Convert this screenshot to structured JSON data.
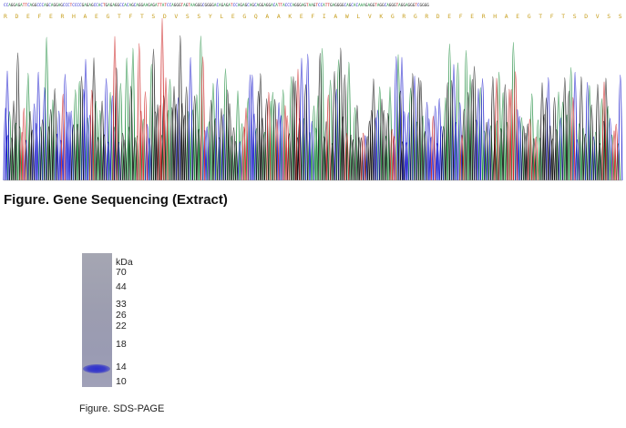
{
  "sequencing": {
    "caption": "Figure. Gene Sequencing (Extract)",
    "dna_sequence": "CCAGGAGATTCAGGCCCAGCAGGAGCCCTCCCCGAGAGCCACTGAGAGGCCACAGCAGGAAGAGATTATCCAGGGTAGTAAGGGCGGGGACAGAGATCCAGAGCAGCAGGAGGACATTACCCAGGGAGTAAGTCCATTGAGGGGCAGCACAAAGAGGTAGGCAGGGTAGGAGGGTCGGGG",
    "protein_sequence": "R D E F E R H A E G T F T S D V S S Y L E G Q A A K E F I A W L V K G R G R D E F E R H A E G T F T S D V S S Y L E G Q A A K E F I A W L V K G R G",
    "base_colors": {
      "A": "#1a8a3a",
      "C": "#1a1acc",
      "G": "#111111",
      "T": "#cc2222"
    }
  },
  "sds_page": {
    "caption": "Figure. SDS-PAGE",
    "unit": "kDa",
    "markers": [
      "70",
      "44",
      "33",
      "26",
      "22",
      "18",
      "14",
      "10"
    ],
    "lane_color": "#9c9db2",
    "band_color": "#3234d0"
  }
}
